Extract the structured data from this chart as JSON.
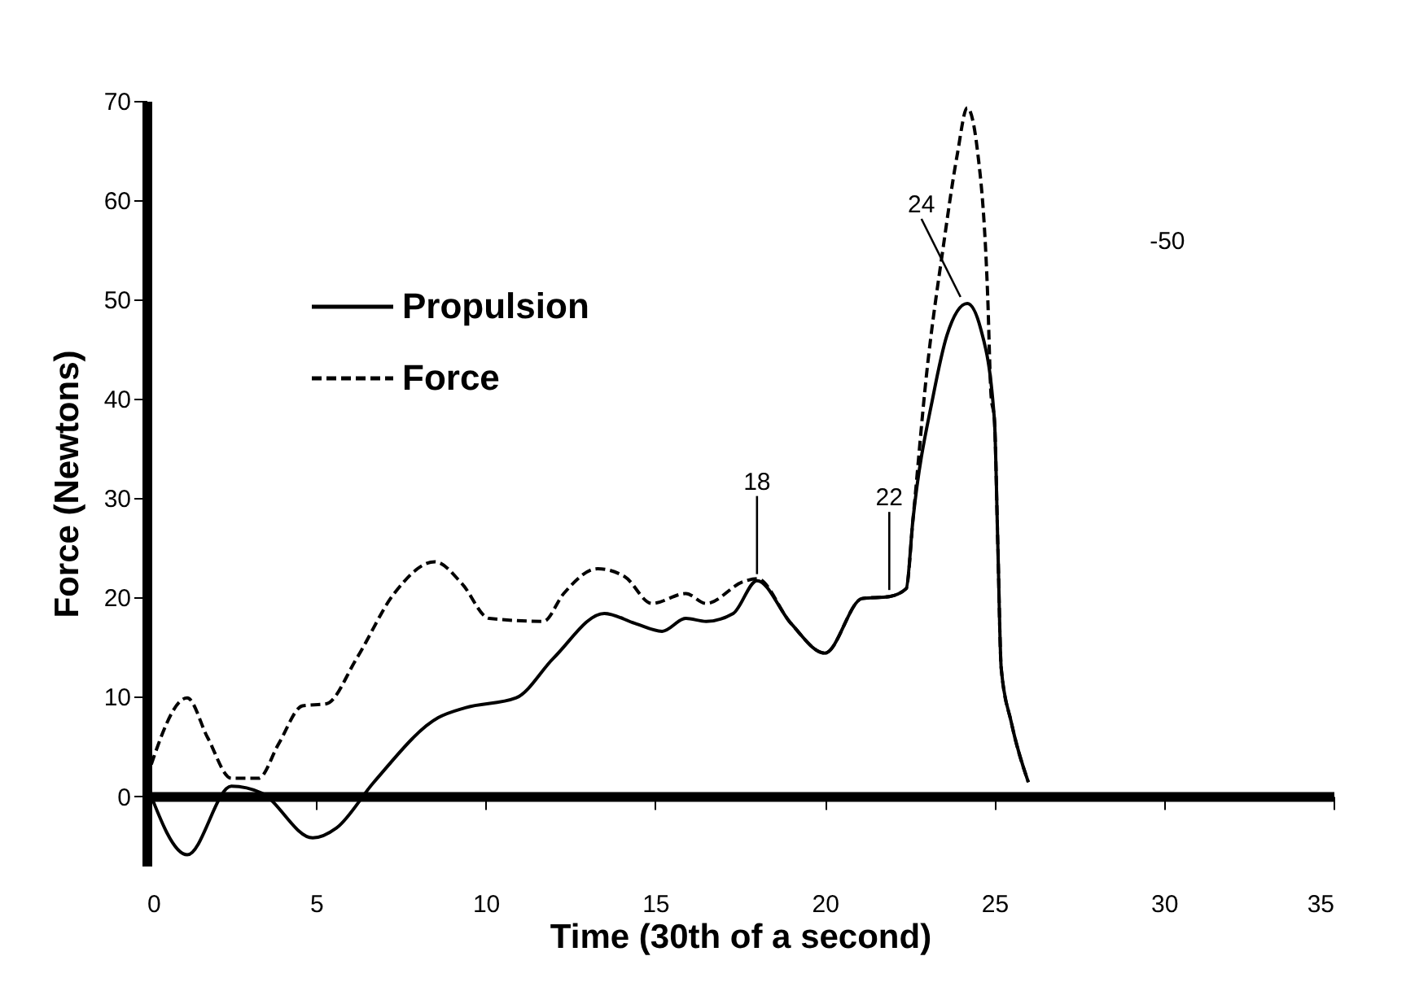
{
  "chart_data": {
    "type": "line",
    "xlabel": "Time (30th of a second)",
    "ylabel": "Force (Newtons)",
    "xlim": [
      0,
      35
    ],
    "xticks": [
      0,
      5,
      10,
      15,
      20,
      25,
      30,
      35
    ],
    "ylim": [
      -7,
      70
    ],
    "yticks": [
      0,
      10,
      20,
      30,
      40,
      50,
      60,
      70
    ],
    "legend": "top left",
    "marker": "none",
    "series": [
      {
        "name": "Propulsion",
        "color": "#000000",
        "line_style": "solid",
        "x": [
          0,
          1.2,
          2.5,
          3.4,
          4.9,
          5.6,
          6.7,
          8.6,
          9.4,
          10.9,
          12,
          13.5,
          14.4,
          15.2,
          15.9,
          16.5,
          17.3,
          18,
          19,
          20,
          21.1,
          21.9,
          22.4,
          22.6,
          23.2,
          23.6,
          24.2,
          24.6,
          25,
          25.1,
          25.2,
          25.5,
          26
        ],
        "values": [
          1.2,
          -5.9,
          1,
          0.3,
          -4.2,
          -3.2,
          1.4,
          7.9,
          8.9,
          9.9,
          13.9,
          18.4,
          17.4,
          16.6,
          17.9,
          17.6,
          18.4,
          21.7,
          17.4,
          14.4,
          19.9,
          20.1,
          20.9,
          27.9,
          40.4,
          46.4,
          49.6,
          47,
          37.9,
          25.4,
          12.9,
          7.4,
          1.4
        ]
      },
      {
        "name": "Force",
        "color": "#000000",
        "line_style": "dashed",
        "x": [
          0,
          1.2,
          1.8,
          2.5,
          3.3,
          3.9,
          4.6,
          5.3,
          6.2,
          7.3,
          8.5,
          9.3,
          10.1,
          11.7,
          12.3,
          13.3,
          14.1,
          14.9,
          15.9,
          16.5,
          17.6,
          18,
          19,
          20,
          21.1,
          21.9,
          22.4,
          22.6,
          23,
          23.5,
          23.9,
          24.2,
          24.5,
          24.8,
          24.9,
          25,
          25.1,
          25.2,
          25.5,
          26
        ],
        "values": [
          1.8,
          9.9,
          5.9,
          1.8,
          1.8,
          5.3,
          9.1,
          9.3,
          13.9,
          20.4,
          23.6,
          21.4,
          17.9,
          17.6,
          20.4,
          22.9,
          22.1,
          19.4,
          20.4,
          19.4,
          21.6,
          21.9,
          17.4,
          14.4,
          19.9,
          20.1,
          20.9,
          27.9,
          42.5,
          55.5,
          64.5,
          69.3,
          65,
          50.5,
          40.4,
          37.9,
          25.4,
          12.9,
          7.4,
          1.4
        ]
      }
    ],
    "annotations": [
      {
        "text": "18",
        "x": 18,
        "y": 21.7
      },
      {
        "text": "22",
        "x": 21.9,
        "y": 20.1
      },
      {
        "text": "24",
        "x": 24,
        "y": 49.6
      },
      "-50"
    ]
  }
}
